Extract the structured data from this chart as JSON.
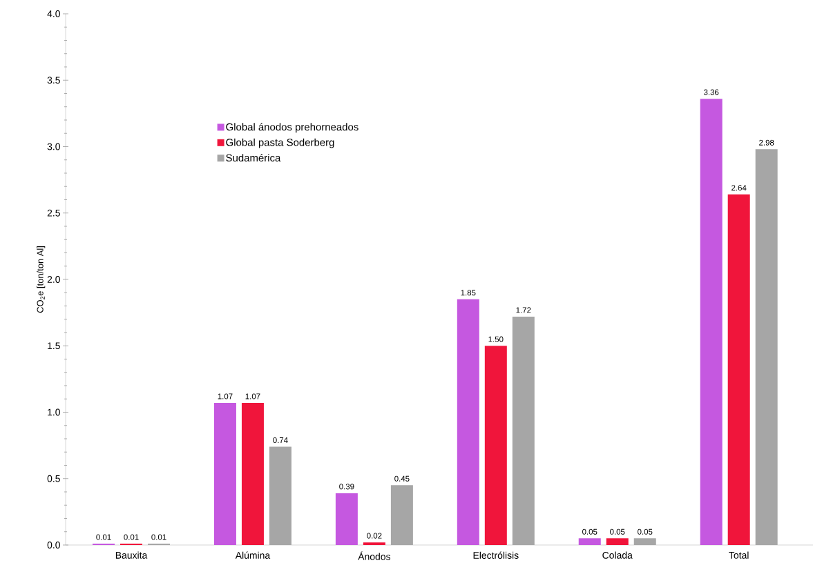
{
  "chart_data": {
    "type": "bar",
    "ylabel": "CO$_{2}$e [ton/ton Al]",
    "categories": [
      "Bauxita",
      "Alúmina",
      "Ánodos",
      "Electrólisis",
      "Colada",
      "Total"
    ],
    "series": [
      {
        "name": "Global ánodos prehorneados",
        "color": "#c558e0",
        "values": [
          0.01,
          1.07,
          0.39,
          1.85,
          0.05,
          3.36
        ],
        "value_labels": [
          "0.01",
          "1.07",
          "0.39",
          "1.85",
          "0.05",
          "3.36"
        ]
      },
      {
        "name": "Global pasta Soderberg",
        "color": "#f0153b",
        "values": [
          0.01,
          1.07,
          0.02,
          1.5,
          0.05,
          2.64
        ],
        "value_labels": [
          "0.01",
          "1.07",
          "0.02",
          "1.50",
          "0.05",
          "2.64"
        ]
      },
      {
        "name": "Sudamérica",
        "color": "#a6a6a6",
        "values": [
          0.01,
          0.74,
          0.45,
          1.72,
          0.05,
          2.98
        ],
        "value_labels": [
          "0.01",
          "0.74",
          "0.45",
          "1.72",
          "0.05",
          "2.98"
        ]
      }
    ],
    "ylim": [
      0,
      4
    ],
    "yticks": [
      {
        "value": 0,
        "label": "0.0"
      },
      {
        "value": 0.5,
        "label": "0.5"
      },
      {
        "value": 1,
        "label": "1.0"
      },
      {
        "value": 1.5,
        "label": "1.5"
      },
      {
        "value": 2,
        "label": "2.0"
      },
      {
        "value": 2.5,
        "label": "2.5"
      },
      {
        "value": 3,
        "label": "3.0"
      },
      {
        "value": 3.5,
        "label": "3.5"
      },
      {
        "value": 4,
        "label": "4.0"
      }
    ],
    "grid": false,
    "legend": "top left"
  }
}
